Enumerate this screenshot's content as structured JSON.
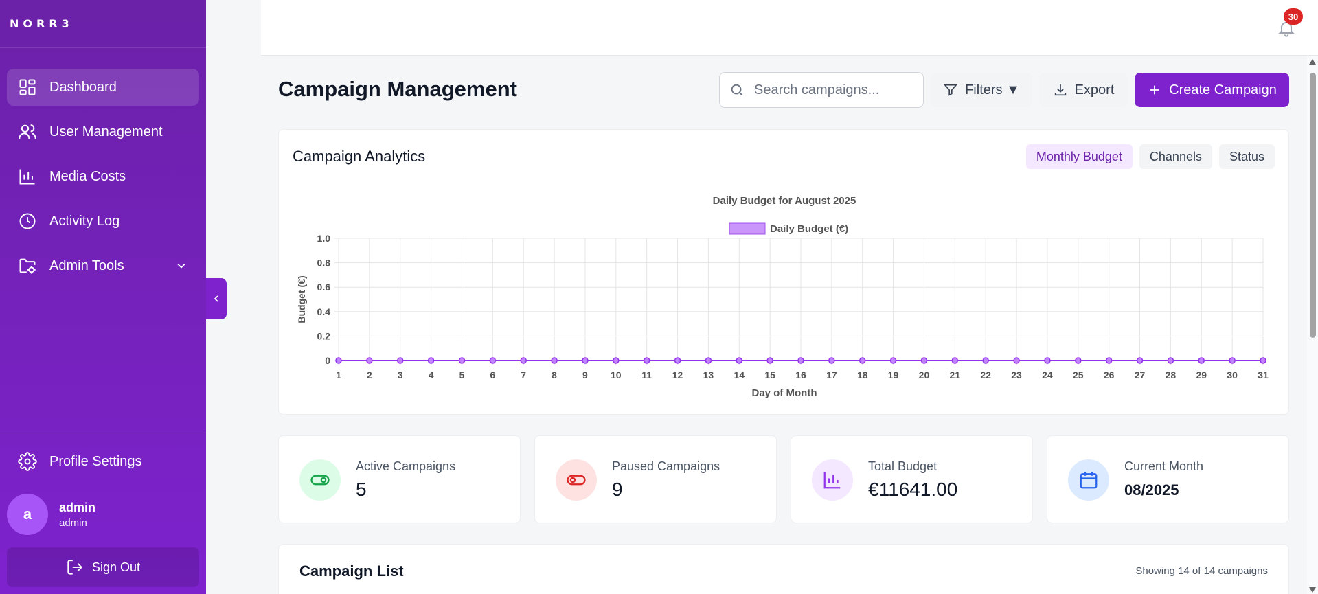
{
  "app": {
    "logo": "NORR3"
  },
  "sidebar": {
    "items": [
      {
        "label": "Dashboard",
        "icon": "dashboard-icon",
        "active": true
      },
      {
        "label": "User Management",
        "icon": "users-icon"
      },
      {
        "label": "Media Costs",
        "icon": "bar-chart-icon"
      },
      {
        "label": "Activity Log",
        "icon": "clock-icon"
      },
      {
        "label": "Admin Tools",
        "icon": "folder-settings-icon"
      }
    ],
    "profile_settings": "Profile Settings",
    "user": {
      "initial": "a",
      "name": "admin",
      "role": "admin"
    },
    "sign_out": "Sign Out"
  },
  "topbar": {
    "notification_count": "30"
  },
  "header": {
    "title": "Campaign Management",
    "search_placeholder": "Search campaigns...",
    "filters_label": "Filters ▼",
    "export_label": "Export",
    "create_label": "Create Campaign"
  },
  "analytics": {
    "title": "Campaign Analytics",
    "tabs": [
      "Monthly Budget",
      "Channels",
      "Status"
    ],
    "active_tab": "Monthly Budget"
  },
  "chart_data": {
    "type": "line",
    "title": "Daily Budget for August 2025",
    "xlabel": "Day of Month",
    "ylabel": "Budget (€)",
    "ylim": [
      0,
      1
    ],
    "yticks": [
      "0",
      "0.2",
      "0.4",
      "0.6",
      "0.8",
      "1.0"
    ],
    "x": [
      1,
      2,
      3,
      4,
      5,
      6,
      7,
      8,
      9,
      10,
      11,
      12,
      13,
      14,
      15,
      16,
      17,
      18,
      19,
      20,
      21,
      22,
      23,
      24,
      25,
      26,
      27,
      28,
      29,
      30,
      31
    ],
    "series": [
      {
        "name": "Daily Budget (€)",
        "values": [
          0,
          0,
          0,
          0,
          0,
          0,
          0,
          0,
          0,
          0,
          0,
          0,
          0,
          0,
          0,
          0,
          0,
          0,
          0,
          0,
          0,
          0,
          0,
          0,
          0,
          0,
          0,
          0,
          0,
          0,
          0
        ]
      }
    ],
    "legend": "top",
    "grid": true,
    "color": "#9333ea"
  },
  "stats": [
    {
      "label": "Active Campaigns",
      "value": "5",
      "icon": "toggle-on-icon",
      "bg": "#dcfce7",
      "fg": "#16a34a"
    },
    {
      "label": "Paused Campaigns",
      "value": "9",
      "icon": "toggle-off-icon",
      "bg": "#fee2e2",
      "fg": "#dc2626"
    },
    {
      "label": "Total Budget",
      "value": "€11641.00",
      "icon": "bar-chart-icon",
      "bg": "#f3e8ff",
      "fg": "#9333ea"
    },
    {
      "label": "Current Month",
      "value": "08/2025",
      "icon": "calendar-icon",
      "bg": "#dbeafe",
      "fg": "#2563eb"
    }
  ],
  "campaign_list": {
    "title": "Campaign List",
    "count_text": "Showing 14 of 14 campaigns"
  }
}
